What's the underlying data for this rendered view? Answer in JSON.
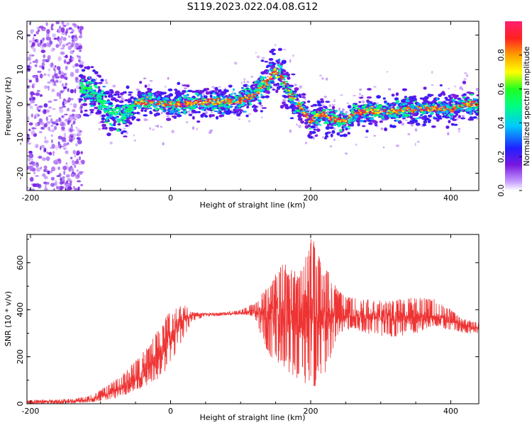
{
  "title": "S119.2023.022.04.08.G12",
  "colors": {
    "snr_line": "#ee3333",
    "spectro_ridge": "#ff2020",
    "spectro_halo": "#7a18e0",
    "spectro_mid": "#00e0ff",
    "axis": "#000000"
  },
  "chart_data": [
    {
      "type": "heatmap",
      "title": "S119.2023.022.04.08.G12",
      "xlabel": "Height of straight line (km)",
      "ylabel": "Frequency (Hz)",
      "xlim": [
        -205,
        440
      ],
      "ylim": [
        -25,
        24
      ],
      "xticks": [
        -200,
        0,
        200,
        400
      ],
      "yticks": [
        -20,
        -10,
        0,
        10,
        20
      ],
      "colorbar": {
        "label": "Normalized spectral amplitude",
        "range": [
          0,
          1
        ],
        "ticks": [
          0.0,
          0.2,
          0.4,
          0.6,
          0.8
        ],
        "colormap": "rainbow (white-violet-blue-cyan-green-yellow-red-pink)"
      },
      "ridge": {
        "x": [
          -130,
          -115,
          -100,
          -90,
          -80,
          -70,
          -60,
          -50,
          -40,
          -20,
          0,
          20,
          40,
          60,
          80,
          100,
          110,
          120,
          130,
          140,
          150,
          155,
          160,
          170,
          180,
          190,
          200,
          210,
          220,
          230,
          240,
          250,
          260,
          280,
          300,
          320,
          340,
          360,
          380,
          400,
          420,
          440
        ],
        "y": [
          5,
          4,
          1,
          -2,
          -3,
          -3,
          -2,
          0,
          1,
          0.5,
          0,
          0.2,
          0.5,
          0.7,
          0.8,
          1,
          2,
          3,
          5,
          7,
          9.5,
          9,
          7,
          3,
          0.5,
          -2,
          -5,
          -3,
          -3,
          -4,
          -5,
          -5,
          -3,
          -2,
          -2,
          -2,
          -1.5,
          -1.5,
          -1,
          -1.5,
          0,
          0
        ],
        "peak_amplitude": 1.0
      },
      "noise_region_x": [
        -205,
        -125
      ],
      "grid": false
    },
    {
      "type": "line",
      "title": "",
      "xlabel": "Height of straight line (km)",
      "ylabel": "SNR (10 * v/v)",
      "xlim": [
        -205,
        440
      ],
      "ylim": [
        0,
        720
      ],
      "xticks": [
        -200,
        0,
        200,
        400
      ],
      "yticks": [
        0,
        200,
        400,
        600
      ],
      "series": [
        {
          "color": "#ee3333",
          "envelope": {
            "x": [
              -205,
              -150,
              -120,
              -100,
              -80,
              -60,
              -40,
              -20,
              0,
              10,
              20,
              30,
              50,
              80,
              100,
              120,
              140,
              160,
              180,
              200,
              220,
              240,
              260,
              300,
              340,
              380,
              400,
              420,
              440
            ],
            "lower": [
              0,
              0,
              5,
              10,
              20,
              40,
              70,
              100,
              150,
              230,
              280,
              350,
              370,
              375,
              380,
              370,
              200,
              150,
              100,
              50,
              120,
              300,
              320,
              280,
              290,
              330,
              310,
              300,
              300
            ],
            "upper": [
              15,
              20,
              30,
              60,
              100,
              150,
              220,
              320,
              400,
              420,
              420,
              390,
              385,
              390,
              400,
              430,
              520,
              600,
              560,
              720,
              590,
              480,
              450,
              440,
              450,
              450,
              400,
              360,
              350
            ]
          },
          "mean": {
            "x": [
              -205,
              -150,
              -120,
              -100,
              -80,
              -60,
              -40,
              -20,
              -10,
              0,
              10,
              20,
              30,
              50,
              80,
              100,
              120,
              140,
              160,
              180,
              200,
              220,
              240,
              260,
              300,
              340,
              380,
              400,
              420,
              440
            ],
            "y": [
              8,
              10,
              15,
              30,
              55,
              80,
              120,
              190,
              240,
              280,
              330,
              360,
              375,
              380,
              382,
              385,
              395,
              380,
              380,
              375,
              385,
              360,
              370,
              380,
              370,
              365,
              370,
              355,
              330,
              318
            ]
          }
        }
      ],
      "grid": false
    }
  ]
}
